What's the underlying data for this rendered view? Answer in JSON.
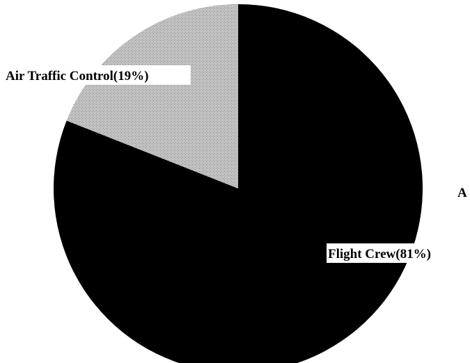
{
  "chart_data": {
    "type": "pie",
    "slices": [
      {
        "label": "Flight Crew(81%)",
        "category": "Flight Crew",
        "value": 81,
        "color": "#000000"
      },
      {
        "label": "Air Traffic Control(19%)",
        "category": "Air Traffic Control",
        "value": 19,
        "color": "#c8c8c8"
      }
    ],
    "cropped_text": "A"
  }
}
